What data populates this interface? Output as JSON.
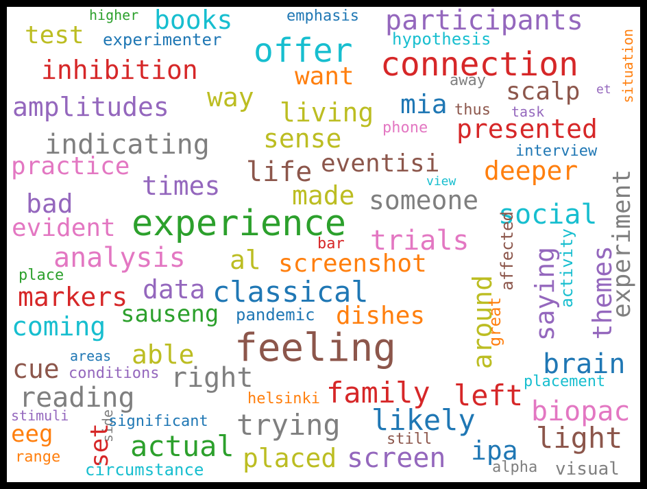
{
  "words": [
    {
      "text": "experience",
      "color": "#2ca02c"
    },
    {
      "text": "feeling",
      "color": "#8c564b"
    },
    {
      "text": "connection",
      "color": "#d62728"
    },
    {
      "text": "offer",
      "color": "#17becf"
    },
    {
      "text": "participants",
      "color": "#9467bd"
    },
    {
      "text": "books",
      "color": "#17becf"
    },
    {
      "text": "test",
      "color": "#bcbd22"
    },
    {
      "text": "higher",
      "color": "#2ca02c"
    },
    {
      "text": "emphasis",
      "color": "#1f77b4"
    },
    {
      "text": "experimenter",
      "color": "#1f77b4"
    },
    {
      "text": "hypothesis",
      "color": "#17becf"
    },
    {
      "text": "situation",
      "color": "#ff7f0e"
    },
    {
      "text": "inhibition",
      "color": "#d62728"
    },
    {
      "text": "want",
      "color": "#ff7f0e"
    },
    {
      "text": "away",
      "color": "#7f7f7f"
    },
    {
      "text": "et",
      "color": "#9467bd"
    },
    {
      "text": "amplitudes",
      "color": "#9467bd"
    },
    {
      "text": "way",
      "color": "#bcbd22"
    },
    {
      "text": "scalp",
      "color": "#8c564b"
    },
    {
      "text": "living",
      "color": "#bcbd22"
    },
    {
      "text": "mia",
      "color": "#1f77b4"
    },
    {
      "text": "thus",
      "color": "#8c564b"
    },
    {
      "text": "task",
      "color": "#9467bd"
    },
    {
      "text": "presented",
      "color": "#d62728"
    },
    {
      "text": "phone",
      "color": "#e377c2"
    },
    {
      "text": "indicating",
      "color": "#7f7f7f"
    },
    {
      "text": "sense",
      "color": "#bcbd22"
    },
    {
      "text": "interview",
      "color": "#1f77b4"
    },
    {
      "text": "practice",
      "color": "#e377c2"
    },
    {
      "text": "eventisi",
      "color": "#8c564b"
    },
    {
      "text": "life",
      "color": "#8c564b"
    },
    {
      "text": "deeper",
      "color": "#ff7f0e"
    },
    {
      "text": "times",
      "color": "#9467bd"
    },
    {
      "text": "view",
      "color": "#17becf"
    },
    {
      "text": "made",
      "color": "#bcbd22"
    },
    {
      "text": "someone",
      "color": "#7f7f7f"
    },
    {
      "text": "bad",
      "color": "#9467bd"
    },
    {
      "text": "social",
      "color": "#17becf"
    },
    {
      "text": "evident",
      "color": "#e377c2"
    },
    {
      "text": "experiment",
      "color": "#7f7f7f"
    },
    {
      "text": "affected",
      "color": "#8c564b"
    },
    {
      "text": "trials",
      "color": "#e377c2"
    },
    {
      "text": "bar",
      "color": "#d62728"
    },
    {
      "text": "activity",
      "color": "#17becf"
    },
    {
      "text": "analysis",
      "color": "#e377c2"
    },
    {
      "text": "al",
      "color": "#bcbd22"
    },
    {
      "text": "screenshot",
      "color": "#ff7f0e"
    },
    {
      "text": "saying",
      "color": "#9467bd"
    },
    {
      "text": "themes",
      "color": "#9467bd"
    },
    {
      "text": "place",
      "color": "#2ca02c"
    },
    {
      "text": "around",
      "color": "#bcbd22"
    },
    {
      "text": "data",
      "color": "#9467bd"
    },
    {
      "text": "classical",
      "color": "#1f77b4"
    },
    {
      "text": "markers",
      "color": "#d62728"
    },
    {
      "text": "great",
      "color": "#ff7f0e"
    },
    {
      "text": "sauseng",
      "color": "#2ca02c"
    },
    {
      "text": "pandemic",
      "color": "#1f77b4"
    },
    {
      "text": "dishes",
      "color": "#ff7f0e"
    },
    {
      "text": "coming",
      "color": "#17becf"
    },
    {
      "text": "able",
      "color": "#bcbd22"
    },
    {
      "text": "brain",
      "color": "#1f77b4"
    },
    {
      "text": "cue",
      "color": "#8c564b"
    },
    {
      "text": "areas",
      "color": "#1f77b4"
    },
    {
      "text": "right",
      "color": "#7f7f7f"
    },
    {
      "text": "conditions",
      "color": "#9467bd"
    },
    {
      "text": "placement",
      "color": "#17becf"
    },
    {
      "text": "family",
      "color": "#d62728"
    },
    {
      "text": "left",
      "color": "#d62728"
    },
    {
      "text": "reading",
      "color": "#7f7f7f"
    },
    {
      "text": "helsinki",
      "color": "#ff7f0e"
    },
    {
      "text": "biopac",
      "color": "#e377c2"
    },
    {
      "text": "stimuli",
      "color": "#9467bd"
    },
    {
      "text": "likely",
      "color": "#1f77b4"
    },
    {
      "text": "trying",
      "color": "#7f7f7f"
    },
    {
      "text": "side",
      "color": "#7f7f7f"
    },
    {
      "text": "significant",
      "color": "#1f77b4"
    },
    {
      "text": "eeg",
      "color": "#ff7f0e"
    },
    {
      "text": "set",
      "color": "#d62728"
    },
    {
      "text": "light",
      "color": "#8c564b"
    },
    {
      "text": "still",
      "color": "#8c564b"
    },
    {
      "text": "actual",
      "color": "#2ca02c"
    },
    {
      "text": "ipa",
      "color": "#1f77b4"
    },
    {
      "text": "range",
      "color": "#ff7f0e"
    },
    {
      "text": "placed",
      "color": "#bcbd22"
    },
    {
      "text": "screen",
      "color": "#9467bd"
    },
    {
      "text": "circumstance",
      "color": "#17becf"
    },
    {
      "text": "alpha",
      "color": "#7f7f7f"
    },
    {
      "text": "visual",
      "color": "#7f7f7f"
    }
  ]
}
